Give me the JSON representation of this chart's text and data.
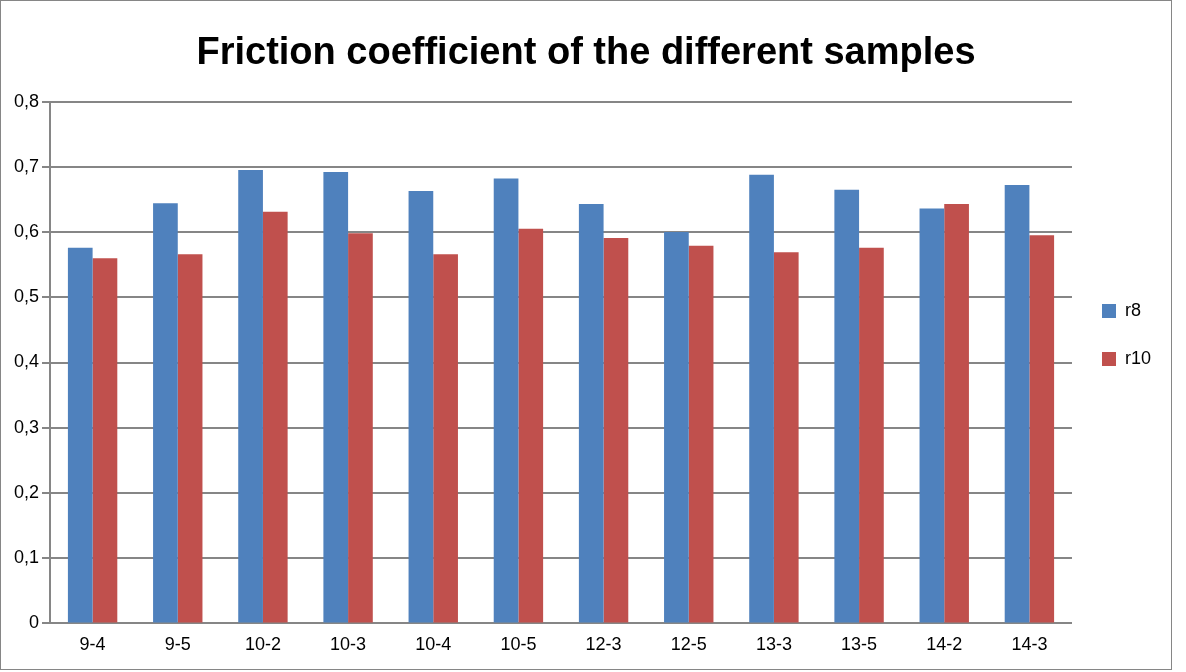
{
  "chart_data": {
    "type": "bar",
    "title": "Friction coefficient of the different samples",
    "categories": [
      "9-4",
      "9-5",
      "10-2",
      "10-3",
      "10-4",
      "10-5",
      "12-3",
      "12-5",
      "13-3",
      "13-5",
      "14-2",
      "14-3"
    ],
    "series": [
      {
        "name": "r8",
        "color": "#4f81bd",
        "values": [
          0.576,
          0.644,
          0.695,
          0.692,
          0.663,
          0.682,
          0.643,
          0.6,
          0.688,
          0.665,
          0.636,
          0.672
        ]
      },
      {
        "name": "r10",
        "color": "#c0504d",
        "values": [
          0.56,
          0.566,
          0.631,
          0.598,
          0.566,
          0.605,
          0.591,
          0.579,
          0.569,
          0.576,
          0.643,
          0.595
        ]
      }
    ],
    "ylim": [
      0,
      0.8
    ],
    "yticks": [
      {
        "value": 0,
        "label": "0"
      },
      {
        "value": 0.1,
        "label": "0,1"
      },
      {
        "value": 0.2,
        "label": "0,2"
      },
      {
        "value": 0.3,
        "label": "0,3"
      },
      {
        "value": 0.4,
        "label": "0,4"
      },
      {
        "value": 0.5,
        "label": "0,5"
      },
      {
        "value": 0.6,
        "label": "0,6"
      },
      {
        "value": 0.7,
        "label": "0,7"
      },
      {
        "value": 0.8,
        "label": "0,8"
      }
    ],
    "grid": "y",
    "legend": "right"
  }
}
